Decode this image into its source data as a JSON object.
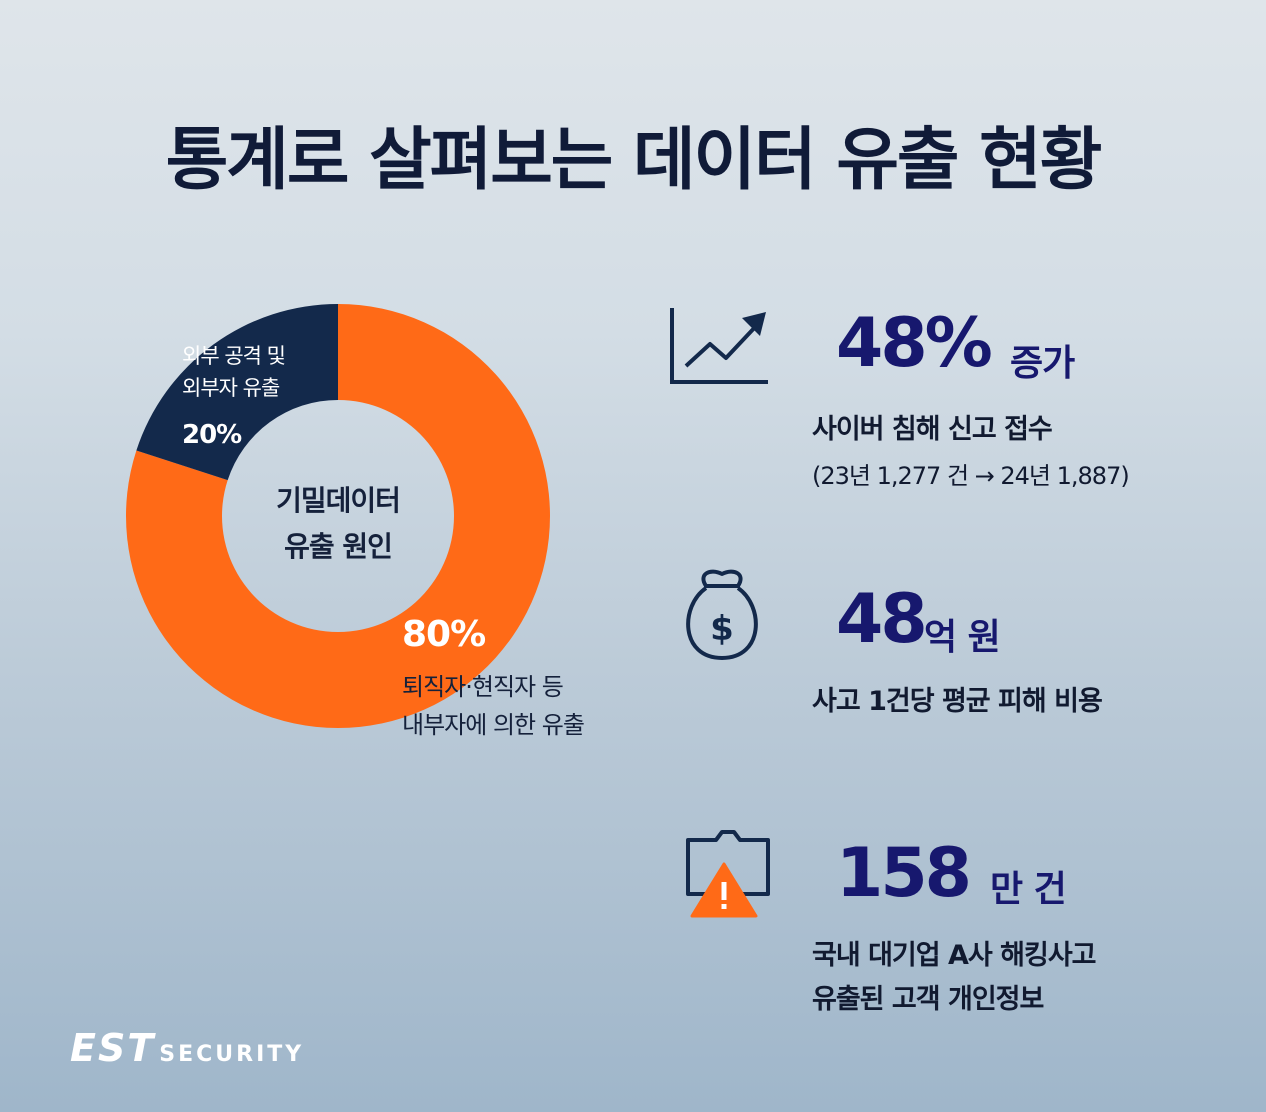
{
  "title": "통계로 살펴보는 데이터 유출 현황",
  "chart_data": {
    "type": "pie",
    "title": "기밀데이터 유출 원인",
    "center_label": [
      "기밀데이터",
      "유출 원인"
    ],
    "slices": [
      {
        "label_lines": [
          "퇴직자·현직자 등",
          "내부자에 의한 유출"
        ],
        "value": 80,
        "display": "80%",
        "color": "#ff6a17"
      },
      {
        "label_lines": [
          "외부 공격 및",
          "외부자 유출"
        ],
        "value": 20,
        "display": "20%",
        "color": "#13294b"
      }
    ]
  },
  "stats": [
    {
      "icon": "trend-chart-icon",
      "value": "48%",
      "unit": "증가",
      "desc": [
        "사이버 침해 신고 접수"
      ],
      "sub": "(23년 1,277 건 → 24년 1,887)"
    },
    {
      "icon": "money-bag-icon",
      "value": "48",
      "unit": "억 원",
      "desc": [
        "사고 1건당 평균 피해 비용"
      ]
    },
    {
      "icon": "warning-folder-icon",
      "value": "158",
      "unit": "만 건",
      "desc": [
        "국내 대기업 A사 해킹사고",
        "유출된 고객 개인정보"
      ]
    }
  ],
  "logo": {
    "main": "EST",
    "sub": "SECURITY"
  },
  "colors": {
    "navy": "#13294b",
    "orange": "#ff6a17",
    "stat_text": "#17186e"
  }
}
